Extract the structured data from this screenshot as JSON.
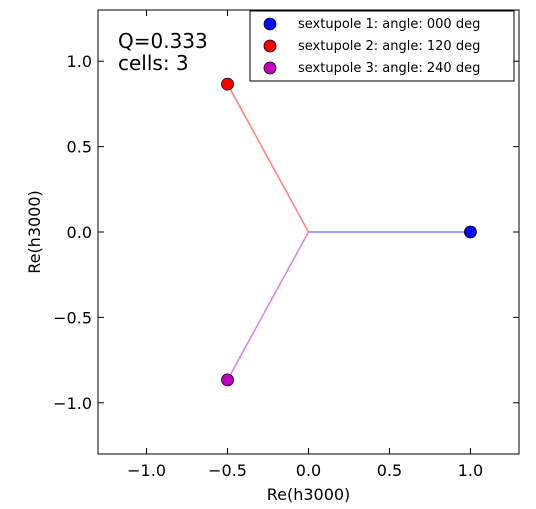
{
  "chart_data": {
    "type": "scatter",
    "title": "",
    "xlabel": "Re(h3000)",
    "ylabel": "Re(h3000)",
    "xlim": [
      -1.3,
      1.3
    ],
    "ylim": [
      -1.3,
      1.3
    ],
    "xticks": [
      -1.0,
      -0.5,
      0.0,
      0.5,
      1.0
    ],
    "xtick_labels": [
      "−1.0",
      "−0.5",
      "0.0",
      "0.5",
      "1.0"
    ],
    "yticks": [
      -1.0,
      -0.5,
      0.0,
      0.5,
      1.0
    ],
    "ytick_labels": [
      "−1.0",
      "−0.5",
      "0.0",
      "0.5",
      "1.0"
    ],
    "grid": false,
    "legend_position": "top-right",
    "annotation": [
      "Q=0.333",
      "cells: 3"
    ],
    "series": [
      {
        "name": "sextupole 1: angle: 000 deg",
        "x": 1.0,
        "y": 0.0,
        "color": "#0000ff",
        "line_color": "#8080ff"
      },
      {
        "name": "sextupole 2: angle: 120 deg",
        "x": -0.5,
        "y": 0.866,
        "color": "#ff0000",
        "line_color": "#ff8080"
      },
      {
        "name": "sextupole 3: angle: 240 deg",
        "x": -0.5,
        "y": -0.866,
        "color": "#bf00bf",
        "line_color": "#df80df"
      }
    ],
    "origin": [
      0.0,
      0.0
    ]
  }
}
